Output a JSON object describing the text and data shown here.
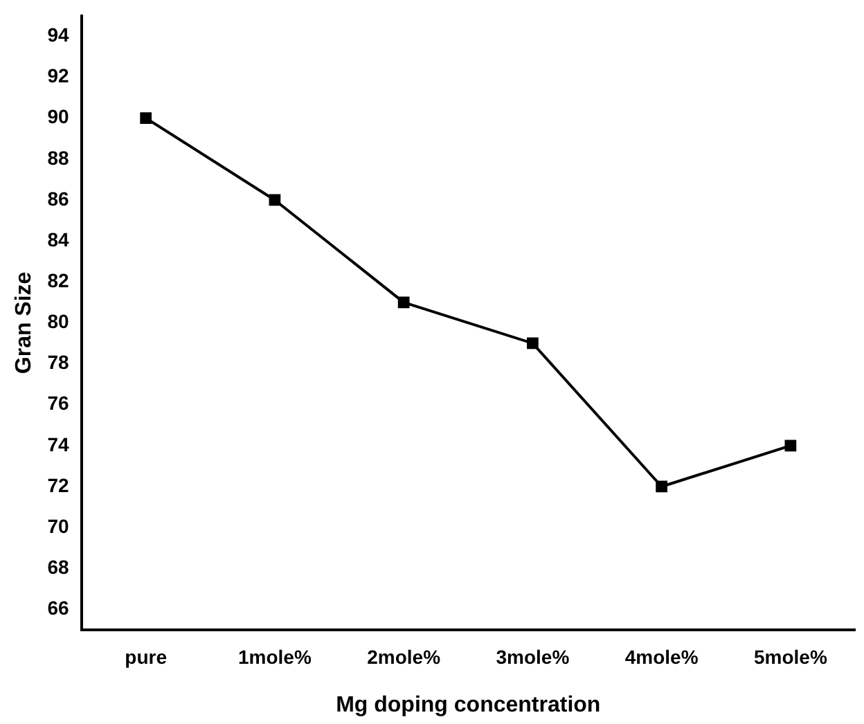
{
  "chart_data": {
    "type": "line",
    "xlabel": "Mg doping concentration",
    "ylabel": "Gran Size",
    "categories": [
      "pure",
      "1mole%",
      "2mole%",
      "3mole%",
      "4mole%",
      "5mole%"
    ],
    "series": [
      {
        "color": "#000000",
        "values": [
          90,
          86,
          81,
          79,
          72,
          74
        ]
      }
    ],
    "ylim": [
      65,
      95
    ],
    "yticks": [
      66,
      68,
      70,
      72,
      74,
      76,
      78,
      80,
      82,
      84,
      86,
      88,
      90,
      92,
      94
    ],
    "grid": false,
    "legend": false,
    "marker": "square",
    "line_style": "solid"
  }
}
